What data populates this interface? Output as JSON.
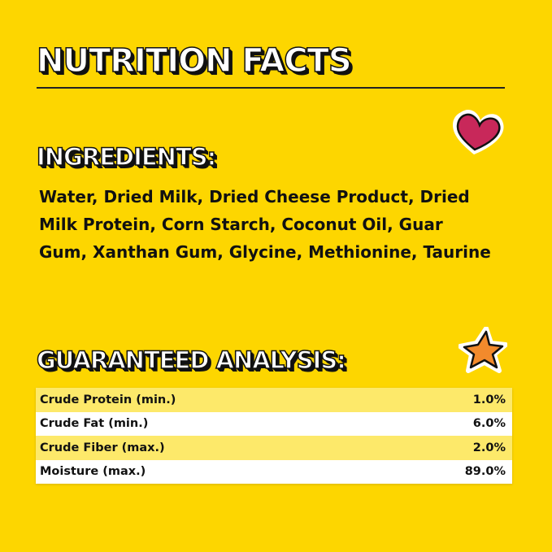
{
  "title": "NUTRITION FACTS",
  "ingredients": {
    "heading": "INGREDIENTS:",
    "text": "Water, Dried Milk, Dried Cheese Product, Dried Milk Protein, Corn Starch, Coconut Oil, Guar Gum, Xanthan Gum, Glycine, Methionine, Taurine"
  },
  "analysis": {
    "heading": "GUARANTEED ANALYSIS:",
    "rows": [
      {
        "label": "Crude Protein (min.)",
        "value": "1.0%"
      },
      {
        "label": "Crude Fat (min.)",
        "value": "6.0%"
      },
      {
        "label": "Crude Fiber (max.)",
        "value": "2.0%"
      },
      {
        "label": "Moisture (max.)",
        "value": "89.0%"
      }
    ]
  },
  "decorations": {
    "heart_icon": "heart-sticker",
    "heart_color": "#c8285a",
    "star_icon": "star-sticker",
    "star_color": "#f28a2c"
  },
  "colors": {
    "background": "#fdd600",
    "row_highlight": "#fde96a"
  }
}
